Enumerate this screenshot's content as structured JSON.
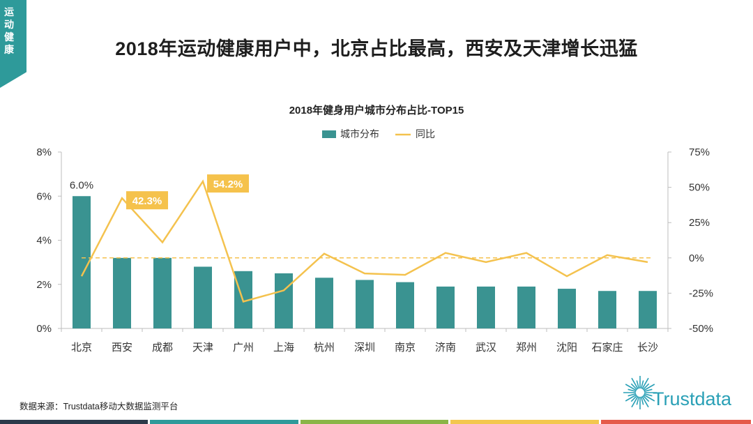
{
  "section_tag": "运动健康",
  "headline": "2018年运动健康用户中，北京占比最高，西安及天津增长迅猛",
  "source": "数据来源：Trustdata移动大数据监测平台",
  "logo_text": "Trustdata",
  "colors": {
    "bar": "#3a9391",
    "line": "#f4c24e",
    "tag": "#2e9a9a",
    "callout": "#f5c24c",
    "footer": [
      "#2b3a4a",
      "#2e9a9a",
      "#8ab547",
      "#f3c74e",
      "#e55a4a"
    ]
  },
  "chart_data": {
    "type": "bar+line",
    "title": "2018年健身用户城市分布占比-TOP15",
    "categories": [
      "北京",
      "西安",
      "成都",
      "天津",
      "广州",
      "上海",
      "杭州",
      "深圳",
      "南京",
      "济南",
      "武汉",
      "郑州",
      "沈阳",
      "石家庄",
      "长沙"
    ],
    "series": [
      {
        "name": "城市分布",
        "type": "bar",
        "axis": "left",
        "values": [
          6.0,
          3.2,
          3.2,
          2.8,
          2.6,
          2.5,
          2.3,
          2.2,
          2.1,
          1.9,
          1.9,
          1.9,
          1.8,
          1.7,
          1.7
        ]
      },
      {
        "name": "同比",
        "type": "line",
        "axis": "right",
        "values": [
          -13,
          42.3,
          11,
          54.2,
          -31,
          -23,
          3,
          -11,
          -12,
          3.5,
          -3,
          3.5,
          -13,
          2,
          -3
        ]
      }
    ],
    "left_axis": {
      "min": 0,
      "max": 8,
      "ticks": [
        "0%",
        "2%",
        "4%",
        "6%",
        "8%"
      ]
    },
    "right_axis": {
      "min": -50,
      "max": 75,
      "ticks": [
        "-50%",
        "-25%",
        "0%",
        "25%",
        "50%",
        "75%"
      ]
    },
    "reference_line": {
      "axis": "right",
      "value": 0,
      "style": "dashed"
    },
    "data_labels": [
      {
        "series": 0,
        "index": 0,
        "text": "6.0%"
      },
      {
        "series": 1,
        "index": 1,
        "text": "42.3%",
        "highlight": true
      },
      {
        "series": 1,
        "index": 3,
        "text": "54.2%",
        "highlight": true
      }
    ],
    "legend_position": "top-center"
  }
}
